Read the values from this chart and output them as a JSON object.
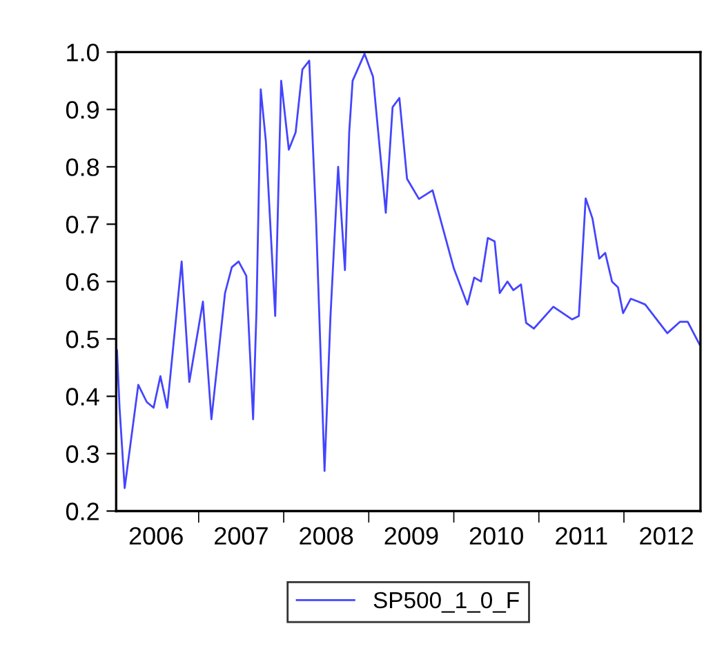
{
  "chart_data": {
    "type": "line",
    "legend": "bottom",
    "grid": false,
    "marker": "none",
    "line_style": "solid",
    "xlim": [
      2006.03,
      2012.9
    ],
    "ylim": [
      0.2,
      1.0
    ],
    "yticks": [
      {
        "value": 0.2,
        "label": "0.2"
      },
      {
        "value": 0.3,
        "label": "0.3"
      },
      {
        "value": 0.4,
        "label": "0.4"
      },
      {
        "value": 0.5,
        "label": "0.5"
      },
      {
        "value": 0.6,
        "label": "0.6"
      },
      {
        "value": 0.7,
        "label": "0.7"
      },
      {
        "value": 0.8,
        "label": "0.8"
      },
      {
        "value": 0.9,
        "label": "0.9"
      },
      {
        "value": 1.0,
        "label": "1.0"
      }
    ],
    "xticks": [
      {
        "value": 2006.5,
        "label": "2006"
      },
      {
        "value": 2007.5,
        "label": "2007"
      },
      {
        "value": 2008.5,
        "label": "2008"
      },
      {
        "value": 2009.5,
        "label": "2009"
      },
      {
        "value": 2010.5,
        "label": "2010"
      },
      {
        "value": 2011.5,
        "label": "2011"
      },
      {
        "value": 2012.5,
        "label": "2012"
      },
      {
        "value": 2007,
        "label": null
      },
      {
        "value": 2008,
        "label": null
      },
      {
        "value": 2009,
        "label": null
      },
      {
        "value": 2010,
        "label": null
      },
      {
        "value": 2011,
        "label": null
      },
      {
        "value": 2012,
        "label": null
      }
    ],
    "series": [
      {
        "name": "SP500_1_0_F",
        "color": "#4444ff",
        "x": [
          2006.04,
          2006.07,
          2006.13,
          2006.29,
          2006.39,
          2006.47,
          2006.55,
          2006.63,
          2006.8,
          2006.89,
          2007.05,
          2007.15,
          2007.31,
          2007.39,
          2007.47,
          2007.56,
          2007.64,
          2007.68,
          2007.73,
          2007.79,
          2007.9,
          2007.97,
          2008.06,
          2008.14,
          2008.22,
          2008.3,
          2008.38,
          2008.48,
          2008.55,
          2008.64,
          2008.72,
          2008.77,
          2008.81,
          2008.95,
          2009.05,
          2009.2,
          2009.28,
          2009.36,
          2009.45,
          2009.59,
          2009.75,
          2010.0,
          2010.16,
          2010.24,
          2010.32,
          2010.4,
          2010.48,
          2010.54,
          2010.63,
          2010.7,
          2010.79,
          2010.85,
          2010.94,
          2011.17,
          2011.39,
          2011.47,
          2011.55,
          2011.63,
          2011.71,
          2011.78,
          2011.86,
          2011.93,
          2011.99,
          2012.08,
          2012.17,
          2012.25,
          2012.51,
          2012.66,
          2012.75,
          2012.89
        ],
        "values": [
          0.48,
          0.38,
          0.24,
          0.42,
          0.39,
          0.38,
          0.435,
          0.38,
          0.635,
          0.425,
          0.565,
          0.36,
          0.58,
          0.625,
          0.635,
          0.61,
          0.36,
          0.55,
          0.935,
          0.845,
          0.54,
          0.95,
          0.83,
          0.86,
          0.97,
          0.985,
          0.71,
          0.27,
          0.54,
          0.8,
          0.62,
          0.86,
          0.95,
          0.997,
          0.957,
          0.72,
          0.904,
          0.92,
          0.779,
          0.744,
          0.759,
          0.623,
          0.56,
          0.607,
          0.6,
          0.676,
          0.67,
          0.58,
          0.6,
          0.585,
          0.595,
          0.528,
          0.518,
          0.556,
          0.534,
          0.54,
          0.745,
          0.71,
          0.64,
          0.65,
          0.6,
          0.59,
          0.545,
          0.57,
          0.565,
          0.56,
          0.51,
          0.53,
          0.53,
          0.49
        ]
      }
    ]
  }
}
